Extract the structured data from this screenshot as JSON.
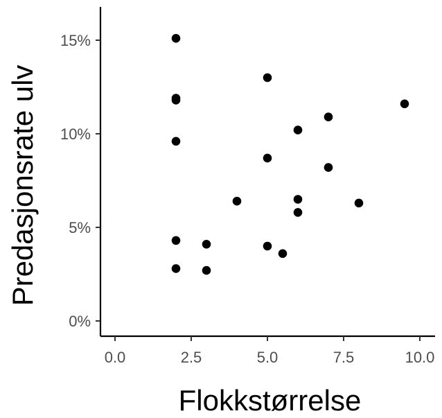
{
  "chart_data": {
    "type": "scatter",
    "title": "",
    "xlabel": "Flokkstørrelse",
    "ylabel": "Predasjonsrate ulv",
    "xlim": [
      -0.4,
      10.5
    ],
    "ylim": [
      -0.008,
      0.168
    ],
    "x_ticks": [
      0,
      2.5,
      5,
      7.5,
      10
    ],
    "x_tick_labels": [
      "0.0",
      "2.5",
      "5.0",
      "7.5",
      "10.0"
    ],
    "y_ticks": [
      0,
      0.05,
      0.1,
      0.15
    ],
    "y_tick_labels": [
      "0%",
      "5%",
      "10%",
      "15%"
    ],
    "grid": false,
    "point_color": "#000000",
    "points": [
      {
        "x": 2,
        "y": 0.151
      },
      {
        "x": 2,
        "y": 0.119
      },
      {
        "x": 2,
        "y": 0.118
      },
      {
        "x": 2,
        "y": 0.096
      },
      {
        "x": 2,
        "y": 0.043
      },
      {
        "x": 2,
        "y": 0.028
      },
      {
        "x": 3,
        "y": 0.041
      },
      {
        "x": 3,
        "y": 0.027
      },
      {
        "x": 4,
        "y": 0.064
      },
      {
        "x": 5,
        "y": 0.13
      },
      {
        "x": 5,
        "y": 0.087
      },
      {
        "x": 5,
        "y": 0.04
      },
      {
        "x": 5.5,
        "y": 0.036
      },
      {
        "x": 6,
        "y": 0.102
      },
      {
        "x": 6,
        "y": 0.065
      },
      {
        "x": 6,
        "y": 0.058
      },
      {
        "x": 7,
        "y": 0.109
      },
      {
        "x": 7,
        "y": 0.082
      },
      {
        "x": 8,
        "y": 0.063
      },
      {
        "x": 9.5,
        "y": 0.116
      }
    ]
  }
}
